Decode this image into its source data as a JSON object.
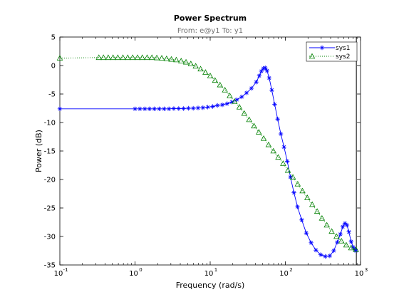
{
  "chart_data": {
    "type": "line",
    "title": "Power Spectrum",
    "subtitle": "From: e@y1  To: y1",
    "xlabel": "Frequency  (rad/s)",
    "ylabel": "Power (dB)",
    "xscale": "log",
    "xlim": [
      0.1,
      1000
    ],
    "ylim": [
      -35,
      5
    ],
    "x_ticks": [
      0.1,
      1,
      10,
      100,
      1000
    ],
    "x_tick_labels": [
      [
        "10",
        "-1"
      ],
      [
        "10",
        "0"
      ],
      [
        "10",
        "1"
      ],
      [
        "10",
        "2"
      ],
      [
        "10",
        "3"
      ]
    ],
    "y_ticks": [
      5,
      0,
      -5,
      -10,
      -15,
      -20,
      -25,
      -30,
      -35
    ],
    "y_tick_labels": [
      "5",
      "0",
      "-5",
      "-10",
      "-15",
      "-20",
      "-25",
      "-30",
      "-35"
    ],
    "grid": false,
    "legend_position": "top-right",
    "nyquist_frequency": 880,
    "series": [
      {
        "name": "sys1",
        "color": "#0000ff",
        "line_style": "solid",
        "marker": "star",
        "points": [
          [
            0.1,
            -7.6
          ],
          [
            1.0,
            -7.6
          ],
          [
            1.16,
            -7.6
          ],
          [
            1.35,
            -7.6
          ],
          [
            1.56,
            -7.6
          ],
          [
            1.81,
            -7.6
          ],
          [
            2.1,
            -7.6
          ],
          [
            2.44,
            -7.6
          ],
          [
            2.83,
            -7.6
          ],
          [
            3.28,
            -7.55
          ],
          [
            3.81,
            -7.55
          ],
          [
            4.42,
            -7.55
          ],
          [
            5.13,
            -7.5
          ],
          [
            5.95,
            -7.5
          ],
          [
            6.9,
            -7.45
          ],
          [
            8.01,
            -7.4
          ],
          [
            9.29,
            -7.3
          ],
          [
            10.8,
            -7.2
          ],
          [
            12.5,
            -7.0
          ],
          [
            14.5,
            -6.9
          ],
          [
            16.8,
            -6.7
          ],
          [
            19.5,
            -6.4
          ],
          [
            22.6,
            -6.0
          ],
          [
            26.3,
            -5.5
          ],
          [
            30.5,
            -4.8
          ],
          [
            35.4,
            -4.0
          ],
          [
            41.0,
            -2.9
          ],
          [
            45.0,
            -1.8
          ],
          [
            48.0,
            -1.0
          ],
          [
            51.0,
            -0.5
          ],
          [
            54.0,
            -0.4
          ],
          [
            57.0,
            -0.9
          ],
          [
            61.0,
            -2.2
          ],
          [
            66.0,
            -4.3
          ],
          [
            72.0,
            -6.8
          ],
          [
            79.0,
            -9.4
          ],
          [
            87.0,
            -12.0
          ],
          [
            96.0,
            -14.3
          ],
          [
            106.0,
            -16.8
          ],
          [
            117.0,
            -19.6
          ],
          [
            130.0,
            -22.3
          ],
          [
            145.0,
            -24.8
          ],
          [
            165.0,
            -27.1
          ],
          [
            190.0,
            -29.4
          ],
          [
            220.0,
            -31.1
          ],
          [
            255.0,
            -32.4
          ],
          [
            295.0,
            -33.2
          ],
          [
            340.0,
            -33.5
          ],
          [
            390.0,
            -33.4
          ],
          [
            440.0,
            -32.5
          ],
          [
            490.0,
            -31.0
          ],
          [
            540.0,
            -29.6
          ],
          [
            580.0,
            -28.3
          ],
          [
            620.0,
            -27.7
          ],
          [
            660.0,
            -28.0
          ],
          [
            700.0,
            -29.2
          ],
          [
            750.0,
            -30.9
          ],
          [
            800.0,
            -31.9
          ],
          [
            840.0,
            -32.3
          ],
          [
            870.0,
            -32.5
          ]
        ]
      },
      {
        "name": "sys2",
        "color": "#008000",
        "line_style": "dotted",
        "marker": "triangle",
        "points": [
          [
            0.1,
            1.3
          ],
          [
            0.33,
            1.4
          ],
          [
            0.38,
            1.4
          ],
          [
            0.44,
            1.4
          ],
          [
            0.51,
            1.4
          ],
          [
            0.59,
            1.4
          ],
          [
            0.69,
            1.4
          ],
          [
            0.8,
            1.4
          ],
          [
            0.93,
            1.4
          ],
          [
            1.08,
            1.4
          ],
          [
            1.25,
            1.4
          ],
          [
            1.45,
            1.4
          ],
          [
            1.68,
            1.4
          ],
          [
            1.95,
            1.35
          ],
          [
            2.27,
            1.3
          ],
          [
            2.63,
            1.2
          ],
          [
            3.05,
            1.1
          ],
          [
            3.54,
            1.0
          ],
          [
            4.11,
            0.8
          ],
          [
            4.77,
            0.6
          ],
          [
            5.53,
            0.3
          ],
          [
            6.42,
            -0.1
          ],
          [
            7.45,
            -0.6
          ],
          [
            8.65,
            -1.2
          ],
          [
            10.0,
            -1.8
          ],
          [
            11.6,
            -2.6
          ],
          [
            13.5,
            -3.4
          ],
          [
            15.7,
            -4.3
          ],
          [
            18.2,
            -5.3
          ],
          [
            21.1,
            -6.3
          ],
          [
            24.5,
            -7.3
          ],
          [
            28.4,
            -8.4
          ],
          [
            33.0,
            -9.5
          ],
          [
            38.3,
            -10.6
          ],
          [
            44.4,
            -11.7
          ],
          [
            51.5,
            -12.8
          ],
          [
            59.8,
            -13.9
          ],
          [
            69.4,
            -15.0
          ],
          [
            80.5,
            -16.1
          ],
          [
            93.5,
            -17.2
          ],
          [
            108.0,
            -18.4
          ],
          [
            126.0,
            -19.6
          ],
          [
            146.0,
            -20.8
          ],
          [
            169.0,
            -22.0
          ],
          [
            196.0,
            -23.2
          ],
          [
            228.0,
            -24.4
          ],
          [
            265.0,
            -25.6
          ],
          [
            307.0,
            -26.8
          ],
          [
            356.0,
            -28.0
          ],
          [
            414.0,
            -29.1
          ],
          [
            480.0,
            -30.0
          ],
          [
            557.0,
            -30.8
          ],
          [
            646.0,
            -31.5
          ],
          [
            750.0,
            -32.0
          ],
          [
            870.0,
            -32.3
          ]
        ]
      }
    ]
  }
}
